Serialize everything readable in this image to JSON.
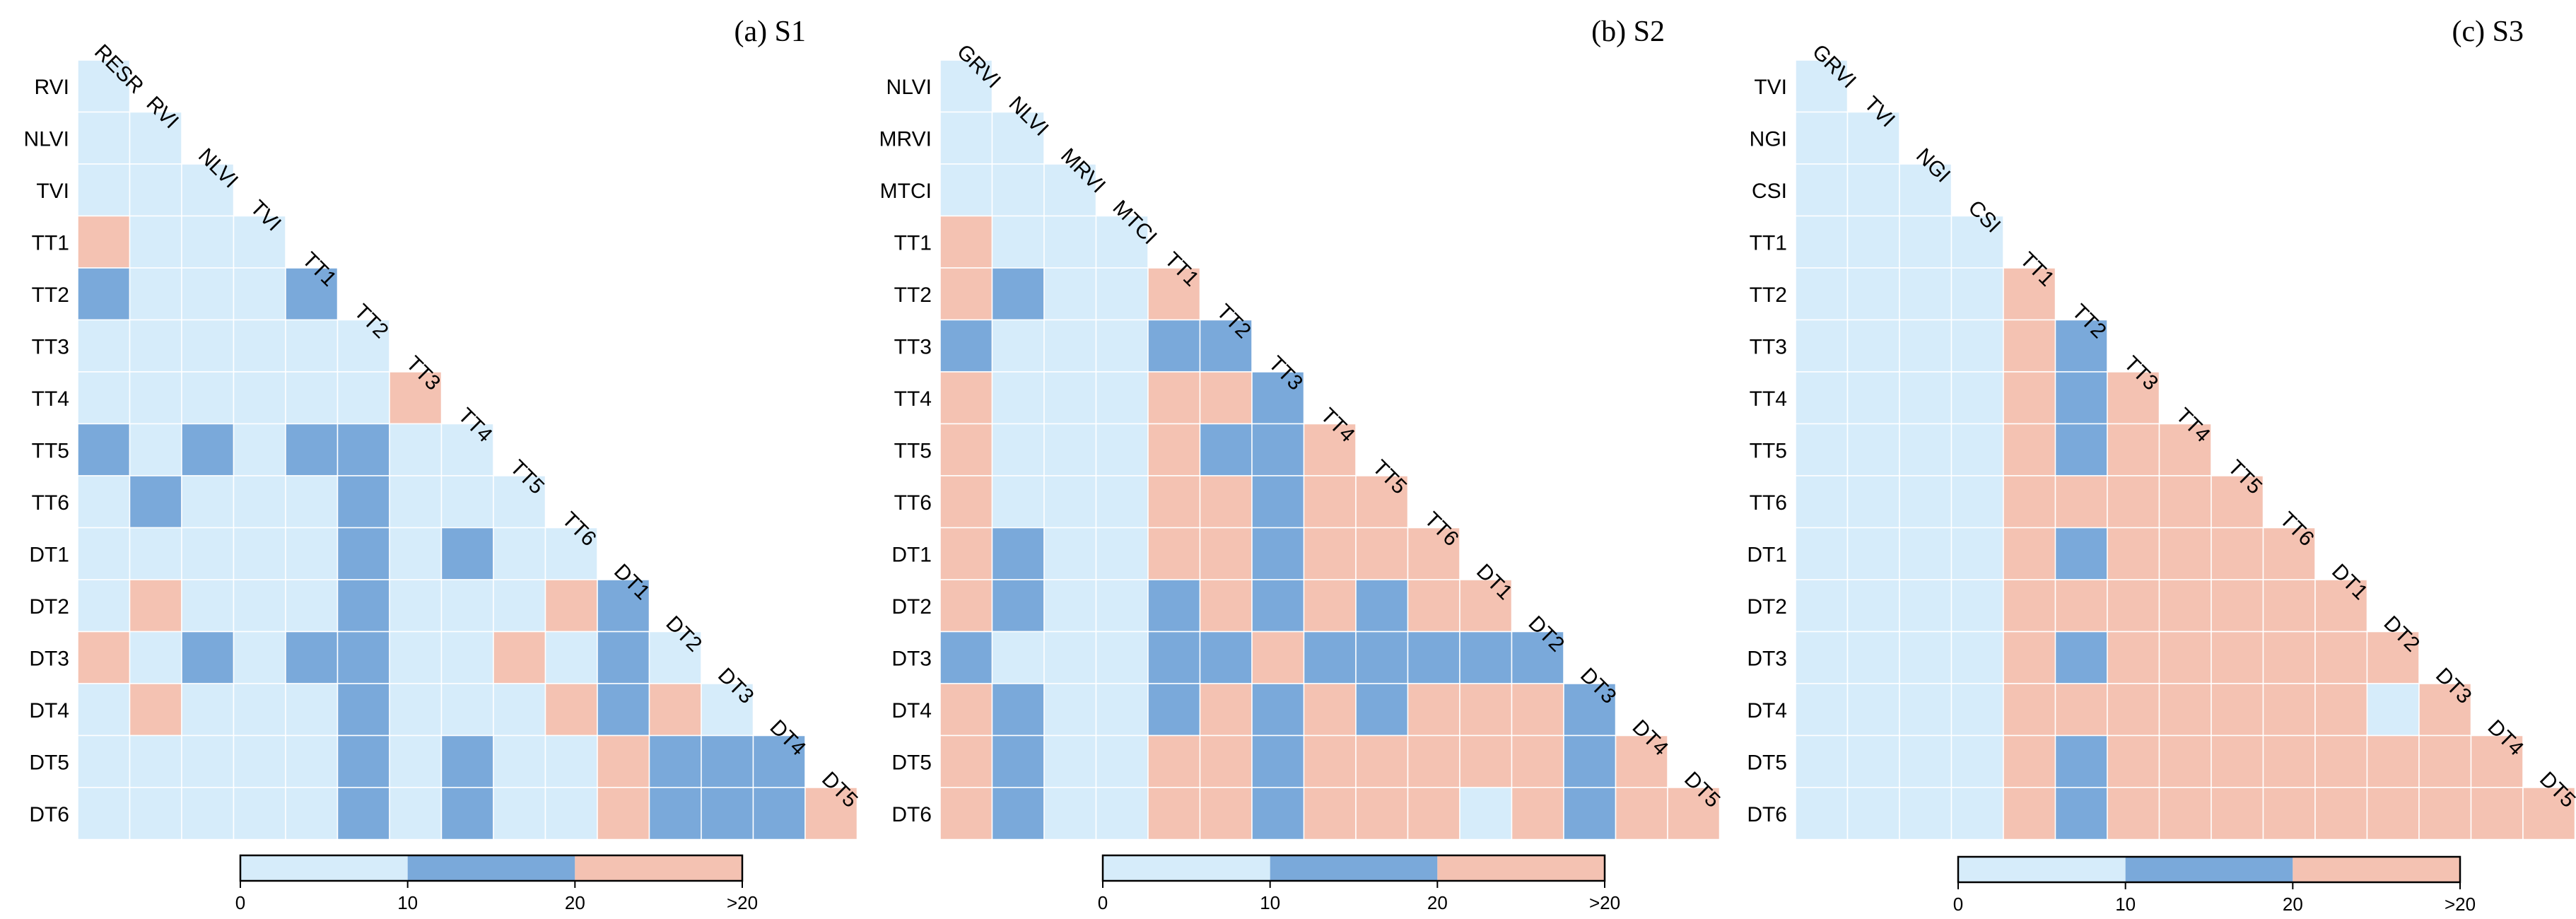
{
  "colors": {
    "low": "#d6ecfa",
    "mid": "#7aa9da",
    "high": "#f4c2b2",
    "grid": "#ffffff",
    "text": "#000000"
  },
  "legend": {
    "tick_labels": [
      "0",
      "10",
      "20",
      ">20"
    ],
    "bins": [
      "low",
      "mid",
      "high"
    ]
  },
  "chart_data": [
    {
      "type": "heatmap",
      "title": "(a) S1",
      "triangle": "lower",
      "row_labels": [
        "RVI",
        "NLVI",
        "TVI",
        "TT1",
        "TT2",
        "TT3",
        "TT4",
        "TT5",
        "TT6",
        "DT1",
        "DT2",
        "DT3",
        "DT4",
        "DT5",
        "DT6"
      ],
      "col_labels": [
        "RESR",
        "RVI",
        "NLVI",
        "TVI",
        "TT1",
        "TT2",
        "TT3",
        "TT4",
        "TT5",
        "TT6",
        "DT1",
        "DT2",
        "DT3",
        "DT4",
        "DT5"
      ],
      "categories": [
        "0-10",
        "10-20",
        ">20"
      ],
      "values": [
        [
          1
        ],
        [
          1,
          1
        ],
        [
          1,
          1,
          1
        ],
        [
          3,
          1,
          1,
          1
        ],
        [
          2,
          1,
          1,
          1,
          2
        ],
        [
          1,
          1,
          1,
          1,
          1,
          1
        ],
        [
          1,
          1,
          1,
          1,
          1,
          1,
          3
        ],
        [
          2,
          1,
          2,
          1,
          2,
          2,
          1,
          1
        ],
        [
          1,
          2,
          1,
          1,
          1,
          2,
          1,
          1,
          1
        ],
        [
          1,
          1,
          1,
          1,
          1,
          2,
          1,
          2,
          1,
          1
        ],
        [
          1,
          3,
          1,
          1,
          1,
          2,
          1,
          1,
          1,
          3,
          2
        ],
        [
          3,
          1,
          2,
          1,
          2,
          2,
          1,
          1,
          3,
          1,
          2,
          1
        ],
        [
          1,
          3,
          1,
          1,
          1,
          2,
          1,
          1,
          1,
          3,
          2,
          3,
          1
        ],
        [
          1,
          1,
          1,
          1,
          1,
          2,
          1,
          2,
          1,
          1,
          3,
          2,
          2,
          2
        ],
        [
          1,
          1,
          1,
          1,
          1,
          2,
          1,
          2,
          1,
          1,
          3,
          2,
          2,
          2,
          3
        ]
      ]
    },
    {
      "type": "heatmap",
      "title": "(b) S2",
      "triangle": "lower",
      "row_labels": [
        "NLVI",
        "MRVI",
        "MTCI",
        "TT1",
        "TT2",
        "TT3",
        "TT4",
        "TT5",
        "TT6",
        "DT1",
        "DT2",
        "DT3",
        "DT4",
        "DT5",
        "DT6"
      ],
      "col_labels": [
        "GRVI",
        "NLVI",
        "MRVI",
        "MTCI",
        "TT1",
        "TT2",
        "TT3",
        "TT4",
        "TT5",
        "TT6",
        "DT1",
        "DT2",
        "DT3",
        "DT4",
        "DT5"
      ],
      "categories": [
        "0-10",
        "10-20",
        ">20"
      ],
      "values": [
        [
          1
        ],
        [
          1,
          1
        ],
        [
          1,
          1,
          1
        ],
        [
          3,
          1,
          1,
          1
        ],
        [
          3,
          2,
          1,
          1,
          3
        ],
        [
          2,
          1,
          1,
          1,
          2,
          2
        ],
        [
          3,
          1,
          1,
          1,
          3,
          3,
          2
        ],
        [
          3,
          1,
          1,
          1,
          3,
          2,
          2,
          3
        ],
        [
          3,
          1,
          1,
          1,
          3,
          3,
          2,
          3,
          3
        ],
        [
          3,
          2,
          1,
          1,
          3,
          3,
          2,
          3,
          3,
          3
        ],
        [
          3,
          2,
          1,
          1,
          2,
          3,
          2,
          3,
          2,
          3,
          3
        ],
        [
          2,
          1,
          1,
          1,
          2,
          2,
          3,
          2,
          2,
          2,
          2,
          2
        ],
        [
          3,
          2,
          1,
          1,
          2,
          3,
          2,
          3,
          2,
          3,
          3,
          3,
          2
        ],
        [
          3,
          2,
          1,
          1,
          3,
          3,
          2,
          3,
          3,
          3,
          3,
          3,
          2,
          3
        ],
        [
          3,
          2,
          1,
          1,
          3,
          3,
          2,
          3,
          3,
          3,
          1,
          3,
          2,
          3,
          3
        ]
      ]
    },
    {
      "type": "heatmap",
      "title": "(c) S3",
      "triangle": "lower",
      "row_labels": [
        "TVI",
        "NGI",
        "CSI",
        "TT1",
        "TT2",
        "TT3",
        "TT4",
        "TT5",
        "TT6",
        "DT1",
        "DT2",
        "DT3",
        "DT4",
        "DT5",
        "DT6"
      ],
      "col_labels": [
        "GRVI",
        "TVI",
        "NGI",
        "CSI",
        "TT1",
        "TT2",
        "TT3",
        "TT4",
        "TT5",
        "TT6",
        "DT1",
        "DT2",
        "DT3",
        "DT4",
        "DT5"
      ],
      "categories": [
        "0-10",
        "10-20",
        ">20"
      ],
      "values": [
        [
          1
        ],
        [
          1,
          1
        ],
        [
          1,
          1,
          1
        ],
        [
          1,
          1,
          1,
          1
        ],
        [
          1,
          1,
          1,
          1,
          3
        ],
        [
          1,
          1,
          1,
          1,
          3,
          2
        ],
        [
          1,
          1,
          1,
          1,
          3,
          2,
          3
        ],
        [
          1,
          1,
          1,
          1,
          3,
          2,
          3,
          3
        ],
        [
          1,
          1,
          1,
          1,
          3,
          3,
          3,
          3,
          3
        ],
        [
          1,
          1,
          1,
          1,
          3,
          2,
          3,
          3,
          3,
          3
        ],
        [
          1,
          1,
          1,
          1,
          3,
          3,
          3,
          3,
          3,
          3,
          3
        ],
        [
          1,
          1,
          1,
          1,
          3,
          2,
          3,
          3,
          3,
          3,
          3,
          3
        ],
        [
          1,
          1,
          1,
          1,
          3,
          3,
          3,
          3,
          3,
          3,
          3,
          1,
          3
        ],
        [
          1,
          1,
          1,
          1,
          3,
          2,
          3,
          3,
          3,
          3,
          3,
          3,
          3,
          3
        ],
        [
          1,
          1,
          1,
          1,
          3,
          2,
          3,
          3,
          3,
          3,
          3,
          3,
          3,
          3,
          3
        ]
      ]
    }
  ]
}
